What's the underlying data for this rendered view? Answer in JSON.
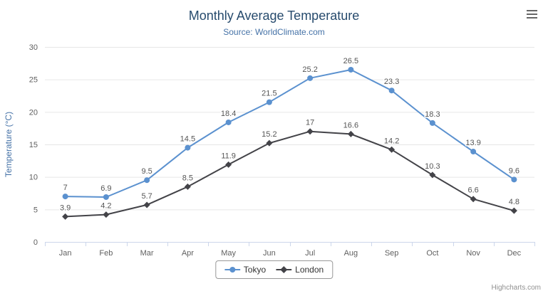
{
  "chart_data": {
    "type": "line",
    "title": "Monthly Average Temperature",
    "subtitle": "Source: WorldClimate.com",
    "categories": [
      "Jan",
      "Feb",
      "Mar",
      "Apr",
      "May",
      "Jun",
      "Jul",
      "Aug",
      "Sep",
      "Oct",
      "Nov",
      "Dec"
    ],
    "series": [
      {
        "name": "Tokyo",
        "color": "#5b91cf",
        "marker": "circle",
        "values": [
          7,
          6.9,
          9.5,
          14.5,
          18.4,
          21.5,
          25.2,
          26.5,
          23.3,
          18.3,
          13.9,
          9.6
        ]
      },
      {
        "name": "London",
        "color": "#434348",
        "marker": "diamond",
        "values": [
          3.9,
          4.2,
          5.7,
          8.5,
          11.9,
          15.2,
          17,
          16.6,
          14.2,
          10.3,
          6.6,
          4.8
        ]
      }
    ],
    "xlabel": "",
    "ylabel": "Temperature (°C)",
    "ylim": [
      0,
      30
    ],
    "ytick_interval": 5,
    "grid": true,
    "legend_position": "bottom-center",
    "colors": {
      "title": "#274b6d",
      "subtitle": "#4572a7",
      "yaxis_title": "#4572a7",
      "axis_labels": "#606060",
      "data_labels": "#555555",
      "gridline": "#e6e6e6",
      "axis_line": "#ccd6eb",
      "legend_border": "#999999"
    }
  },
  "menu": {
    "icon": "hamburger-icon"
  },
  "credits": "Highcharts.com"
}
